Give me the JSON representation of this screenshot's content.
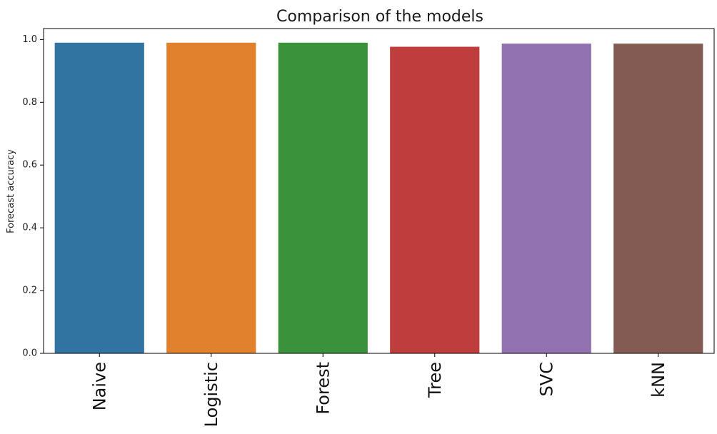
{
  "chart_data": {
    "type": "bar",
    "title": "Comparison of the models",
    "xlabel": "",
    "ylabel": "Forecast accuracy",
    "categories": [
      "Naive",
      "Logistic",
      "Forest",
      "Tree",
      "SVC",
      "kNN"
    ],
    "values": [
      0.99,
      0.99,
      0.99,
      0.977,
      0.987,
      0.987
    ],
    "colors": [
      "#3274a1",
      "#e1812c",
      "#3a923a",
      "#c03d3e",
      "#9372b2",
      "#845b53"
    ],
    "ylim": [
      0,
      1.035
    ],
    "yticks": [
      "0.0",
      "0.2",
      "0.4",
      "0.6",
      "0.8",
      "1.0"
    ],
    "grid": false,
    "legend": "none"
  }
}
